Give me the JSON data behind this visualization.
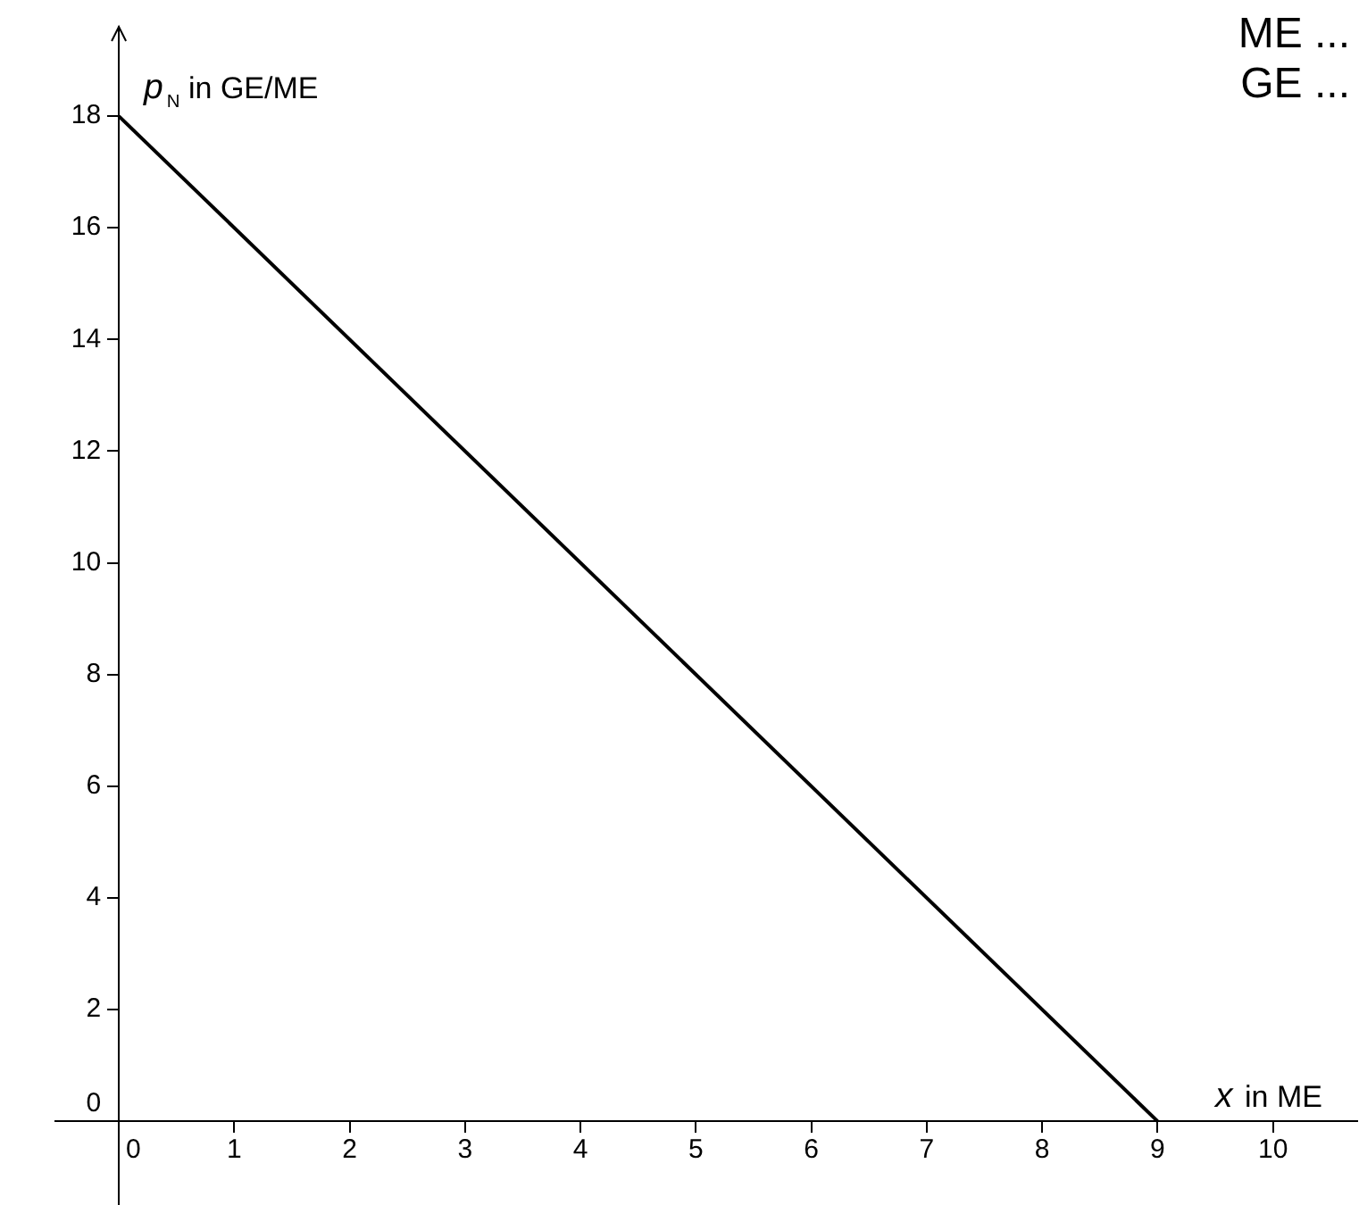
{
  "chart_data": {
    "type": "line",
    "xlabel": "x in ME",
    "ylabel": "p$_{N}$ in GE/ME",
    "annotations": [
      "ME ...",
      "GE ..."
    ],
    "series": [
      {
        "color": "#000000",
        "x": [
          0,
          9
        ],
        "values": [
          18,
          0
        ]
      }
    ],
    "xlim": [
      -0.55,
      10.73
    ],
    "xticks": [
      0,
      1,
      2,
      3,
      4,
      5,
      6,
      7,
      8,
      9,
      10
    ],
    "ylim": [
      -1.5,
      19.6
    ],
    "yticks": [
      0,
      2,
      4,
      6,
      8,
      10,
      12,
      14,
      16,
      18
    ],
    "grid": false,
    "legend": false,
    "marker": "none",
    "line_style": "solid"
  }
}
